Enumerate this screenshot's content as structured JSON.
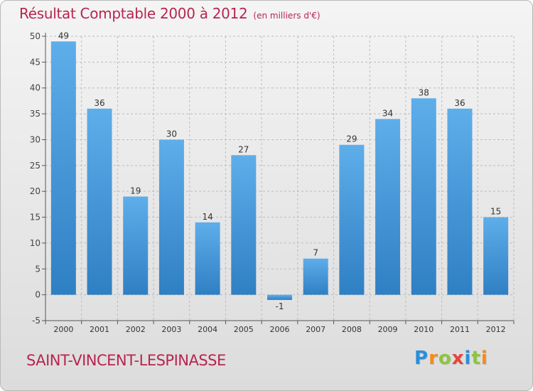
{
  "header": {
    "title": "Résultat Comptable 2000 à 2012",
    "subtitle": "(en milliers d'€)"
  },
  "footer": {
    "town": "SAINT-VINCENT-LESPINASSE",
    "logo_letters": [
      {
        "char": "P",
        "color": "#2a8fd8"
      },
      {
        "char": "r",
        "color": "#f28c1c"
      },
      {
        "char": "o",
        "color": "#8cc63f"
      },
      {
        "char": "x",
        "color": "#e8433a"
      },
      {
        "char": "i",
        "color": "#2a8fd8"
      },
      {
        "char": "t",
        "color": "#8cc63f"
      },
      {
        "char": "i",
        "color": "#f28c1c"
      }
    ]
  },
  "chart_data": {
    "type": "bar",
    "title": "Résultat Comptable 2000 à 2012",
    "xlabel": "",
    "ylabel": "",
    "categories": [
      "2000",
      "2001",
      "2002",
      "2003",
      "2004",
      "2005",
      "2006",
      "2007",
      "2008",
      "2009",
      "2010",
      "2011",
      "2012"
    ],
    "values": [
      49,
      36,
      19,
      30,
      14,
      27,
      -1,
      7,
      29,
      34,
      38,
      36,
      15
    ],
    "value_labels": [
      "49",
      "36",
      "19",
      "30",
      "14",
      "27",
      "-1",
      "7",
      "29",
      "34",
      "38",
      "36",
      "15"
    ],
    "ylim": [
      -5,
      50
    ],
    "yticks": [
      -5,
      0,
      5,
      10,
      15,
      20,
      25,
      30,
      35,
      40,
      45,
      50
    ],
    "grid": true,
    "colors": {
      "bar_top": "#5eaeea",
      "bar_bottom": "#2f7fc4",
      "title": "#b8254f",
      "grid": "#bcbcbc"
    }
  }
}
